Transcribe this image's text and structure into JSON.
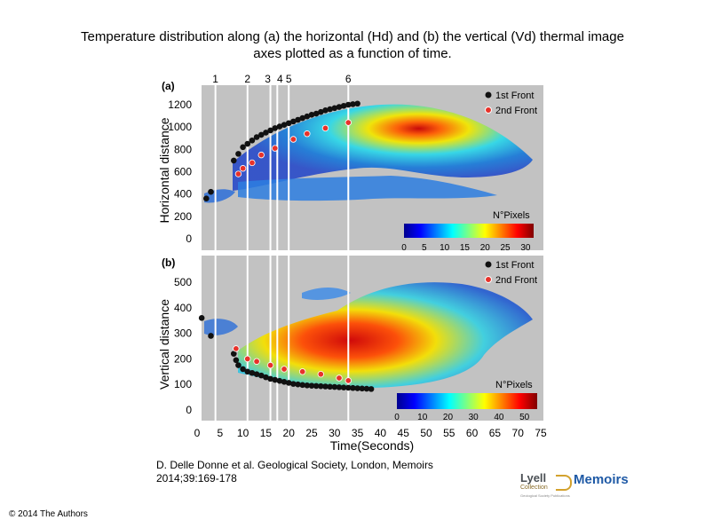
{
  "title_line1": "Temperature distribution along (a) the horizontal (Hd) and (b) the vertical (Vd) thermal image",
  "title_line2": "axes plotted as a function of time.",
  "citation_line1": "D. Delle Donne et al. Geological Society, London, Memoirs",
  "citation_line2": "2014;39:169-178",
  "copyright": "© 2014 The Authors",
  "logo": {
    "lyell": "Lyell",
    "collection": "Collection",
    "memoirs": "Memoirs",
    "tagline": "Geological Society Publications"
  },
  "colors": {
    "panel_bg": "#c2c2c2",
    "front1": "#111111",
    "front2": "#e8322a",
    "vline": "#ffffff"
  },
  "chart_data": {
    "type": "scatter",
    "xlabel": "Time(Seconds)",
    "x_ticks": [
      0,
      5,
      10,
      15,
      20,
      25,
      30,
      35,
      40,
      45,
      50,
      55,
      60,
      65,
      70,
      75
    ],
    "xlim": [
      0,
      75
    ],
    "vertical_lines": [
      {
        "label": "1",
        "x": 4
      },
      {
        "label": "2",
        "x": 11
      },
      {
        "label": "3",
        "x": 16
      },
      {
        "label": "4",
        "x": 17.5
      },
      {
        "label": "5",
        "x": 20
      },
      {
        "label": "6",
        "x": 33
      }
    ],
    "panels": [
      {
        "id": "a",
        "label": "(a)",
        "ylabel": "Horizontal distance",
        "ylim": [
          0,
          1300
        ],
        "y_ticks": [
          0,
          200,
          400,
          600,
          800,
          1000,
          1200
        ],
        "legend": [
          "1st Front",
          "2nd Front"
        ],
        "colorbar": {
          "label": "N°Pixels",
          "ticks": [
            0,
            5,
            10,
            15,
            20,
            25,
            30
          ],
          "max": 32
        },
        "series": [
          {
            "name": "1st Front",
            "x": [
              2,
              3,
              8,
              9,
              10,
              11,
              12,
              13,
              14,
              15,
              16,
              17,
              18,
              19,
              20,
              21,
              22,
              23,
              24,
              25,
              26,
              27,
              28,
              29,
              30,
              31,
              32,
              33,
              34,
              35
            ],
            "y": [
              360,
              420,
              700,
              760,
              820,
              850,
              880,
              910,
              930,
              950,
              970,
              990,
              1005,
              1020,
              1035,
              1050,
              1065,
              1080,
              1095,
              1110,
              1120,
              1135,
              1150,
              1160,
              1170,
              1180,
              1190,
              1200,
              1205,
              1210
            ]
          },
          {
            "name": "2nd Front",
            "x": [
              9,
              10,
              12,
              14,
              17,
              21,
              24,
              28,
              33
            ],
            "y": [
              580,
              630,
              680,
              750,
              810,
              890,
              940,
              990,
              1040
            ]
          }
        ]
      },
      {
        "id": "b",
        "label": "(b)",
        "ylabel": "Vertical distance",
        "ylim": [
          -40,
          560
        ],
        "y_ticks": [
          0,
          100,
          200,
          300,
          400,
          500
        ],
        "legend": [
          "1st Front",
          "2nd Front"
        ],
        "colorbar": {
          "label": "N°Pixels",
          "ticks": [
            0,
            10,
            20,
            30,
            40,
            50
          ],
          "max": 55
        },
        "series": [
          {
            "name": "1st Front",
            "x": [
              1,
              3,
              8,
              8.5,
              9,
              10,
              11,
              12,
              13,
              14,
              15,
              16,
              17,
              18,
              19,
              20,
              21,
              22,
              23,
              24,
              25,
              26,
              27,
              28,
              29,
              30,
              31,
              32,
              33,
              34,
              35,
              36,
              37,
              38
            ],
            "y": [
              360,
              290,
              220,
              195,
              175,
              160,
              150,
              145,
              140,
              135,
              128,
              122,
              118,
              114,
              110,
              106,
              102,
              100,
              98,
              96,
              95,
              94,
              93,
              92,
              91,
              90,
              89,
              88,
              87,
              86,
              85,
              84,
              83,
              82
            ]
          },
          {
            "name": "2nd Front",
            "x": [
              8.5,
              11,
              13,
              16,
              19,
              23,
              27,
              31,
              33
            ],
            "y": [
              240,
              200,
              190,
              175,
              160,
              150,
              140,
              125,
              115
            ]
          }
        ]
      }
    ]
  }
}
